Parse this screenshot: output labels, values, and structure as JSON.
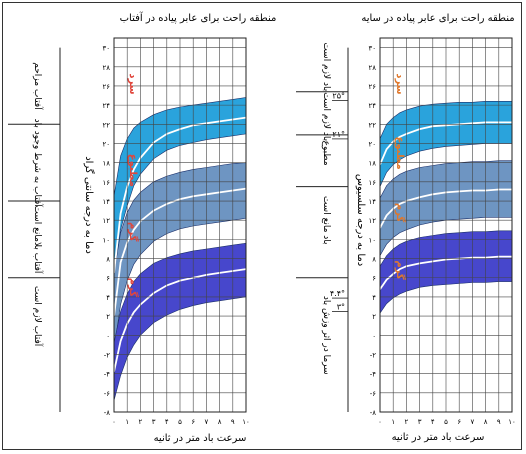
{
  "chart_data": [
    {
      "type": "area",
      "title": "منطقه راحت برای عابر پیاده در آفتاب",
      "xlabel": "سرعت باد متر در ثانیه",
      "ylabel": "دما به درجه سانتی گراد",
      "x_ticks": [
        "۰",
        "۱",
        "۲",
        "۳",
        "۴",
        "۵",
        "۶",
        "۷",
        "۸",
        "۹",
        "۱۰"
      ],
      "y_ticks": [
        {
          "v": 30,
          "t": "۳۰"
        },
        {
          "v": 28,
          "t": "۲۸"
        },
        {
          "v": 26,
          "t": "۲۶"
        },
        {
          "v": 24,
          "t": "۲۴"
        },
        {
          "v": 22,
          "t": "۲۲"
        },
        {
          "v": 20,
          "t": "۲۰"
        },
        {
          "v": 18,
          "t": "۱۸"
        },
        {
          "v": 16,
          "t": "۱۶"
        },
        {
          "v": 14,
          "t": "۱۴"
        },
        {
          "v": 12,
          "t": "۱۲"
        },
        {
          "v": 10,
          "t": "۱۰"
        },
        {
          "v": 8,
          "t": "۸"
        },
        {
          "v": 6,
          "t": "۶"
        },
        {
          "v": 4,
          "t": "۴"
        },
        {
          "v": 2,
          "t": "۲"
        },
        {
          "v": 0,
          "t": "۰"
        },
        {
          "v": -2,
          "t": "-۲"
        },
        {
          "v": -4,
          "t": "-۴"
        },
        {
          "v": -6,
          "t": "-۶"
        },
        {
          "v": -8,
          "t": "-۸"
        }
      ],
      "xlim": [
        0,
        10
      ],
      "ylim": [
        -8,
        31
      ],
      "x": [
        0,
        0.5,
        1,
        1.5,
        2,
        3,
        4,
        5,
        6,
        7,
        8,
        9,
        10
      ],
      "bands": [
        {
          "color": "#2aa3dc",
          "lower": [
            6,
            11,
            13.5,
            15.6,
            16.8,
            18.4,
            19.3,
            19.8,
            20.1,
            20.4,
            20.6,
            20.8,
            21
          ],
          "upper": [
            14.5,
            18.7,
            20.5,
            21.6,
            22.2,
            23,
            23.5,
            23.8,
            24,
            24.2,
            24.4,
            24.6,
            24.8
          ]
        },
        {
          "color": "#6e95c2",
          "lower": [
            -1.5,
            3.2,
            5.7,
            7.4,
            8.4,
            9.8,
            10.6,
            11.1,
            11.4,
            11.6,
            11.8,
            12,
            12.2
          ],
          "upper": [
            6.5,
            10.7,
            12.8,
            14.1,
            14.9,
            16,
            16.6,
            17,
            17.3,
            17.5,
            17.7,
            17.9,
            18
          ]
        },
        {
          "color": "#4747cc",
          "lower": [
            -6.8,
            -4.2,
            -2.3,
            -1,
            0,
            1.3,
            2.1,
            2.7,
            3.1,
            3.4,
            3.6,
            3.8,
            4
          ],
          "upper": [
            -0.8,
            2.5,
            4.3,
            5.6,
            6.4,
            7.5,
            8.1,
            8.5,
            8.8,
            9,
            9.2,
            9.4,
            9.6
          ]
        }
      ],
      "white_lines": [
        [
          6.5,
          12.7,
          15.5,
          17.3,
          18.5,
          20.1,
          21,
          21.5,
          21.9,
          22.1,
          22.3,
          22.5,
          22.7
        ],
        [
          2,
          7.6,
          9.7,
          11,
          11.9,
          13,
          13.7,
          14.2,
          14.5,
          14.7,
          14.9,
          15.1,
          15.3
        ],
        [
          -3.8,
          -0.6,
          1.2,
          2.4,
          3.2,
          4.4,
          5.2,
          5.7,
          6,
          6.3,
          6.5,
          6.7,
          6.9
        ]
      ],
      "marker_text": {
        "color": "#e0463c",
        "groups": [
          {
            "x": 1.2,
            "y": 26.2,
            "text": "سرد"
          },
          {
            "x": 1.2,
            "y": 17.2,
            "text": "مطبوع"
          },
          {
            "x": 1.2,
            "y": 10.8,
            "text": "گرم"
          },
          {
            "x": 1.2,
            "y": 5.0,
            "text": "گرم"
          }
        ]
      },
      "side_labels": [
        {
          "y": 26,
          "text": "آفتاب مزاحم"
        },
        {
          "y": 18,
          "text": "آفتاب به شرط وجود باد"
        },
        {
          "y": 10,
          "text": "آفتاب بلامانع است"
        },
        {
          "y": 2,
          "text": "آفتاب لازم است"
        }
      ]
    },
    {
      "type": "area",
      "title": "منطقه راحت برای عابر پیاده در سایه",
      "xlabel": "سرعت باد متر در ثانیه",
      "ylabel": "دما به درجه سلسیوس",
      "x_ticks": [
        "۰",
        "۱",
        "۲",
        "۳",
        "۴",
        "۵",
        "۶",
        "۷",
        "۸",
        "۹",
        "۱۰"
      ],
      "y_ticks": [
        {
          "v": 30,
          "t": "۳۰"
        },
        {
          "v": 28,
          "t": "۲۸"
        },
        {
          "v": 26,
          "t": "۲۶"
        },
        {
          "v": 24,
          "t": "۲۴"
        },
        {
          "v": 22,
          "t": "۲۲"
        },
        {
          "v": 20,
          "t": "۲۰"
        },
        {
          "v": 18,
          "t": "۱۸"
        },
        {
          "v": 16,
          "t": "۱۶"
        },
        {
          "v": 14,
          "t": "۱۴"
        },
        {
          "v": 12,
          "t": "۱۲"
        },
        {
          "v": 10,
          "t": "۱۰"
        },
        {
          "v": 8,
          "t": "۸"
        },
        {
          "v": 6,
          "t": "۶"
        },
        {
          "v": 4,
          "t": "۴"
        },
        {
          "v": 2,
          "t": "۲"
        },
        {
          "v": 0,
          "t": "۰"
        },
        {
          "v": -2,
          "t": "-۲"
        },
        {
          "v": -4,
          "t": "-۴"
        },
        {
          "v": -6,
          "t": "-۶"
        },
        {
          "v": -8,
          "t": "-۸"
        }
      ],
      "xlim": [
        0,
        10
      ],
      "ylim": [
        -8,
        31
      ],
      "x": [
        0,
        0.5,
        1,
        1.5,
        2,
        3,
        4,
        5,
        6,
        7,
        8,
        9,
        10
      ],
      "bands": [
        {
          "color": "#2aa3dc",
          "lower": [
            15.5,
            17,
            17.8,
            18.3,
            18.7,
            19.2,
            19.5,
            19.7,
            19.8,
            19.9,
            20,
            20,
            20
          ],
          "upper": [
            20.5,
            22,
            22.7,
            23.2,
            23.5,
            23.9,
            24.1,
            24.2,
            24.3,
            24.3,
            24.4,
            24.4,
            24.4
          ]
        },
        {
          "color": "#6e95c2",
          "lower": [
            8.3,
            9.5,
            10.2,
            10.7,
            11,
            11.5,
            11.8,
            12,
            12.1,
            12.2,
            12.3,
            12.3,
            12.3
          ],
          "upper": [
            14.3,
            15.6,
            16.3,
            16.8,
            17.1,
            17.5,
            17.7,
            17.9,
            18,
            18.1,
            18.1,
            18.2,
            18.2
          ]
        },
        {
          "color": "#4747cc",
          "lower": [
            2.3,
            3.3,
            3.9,
            4.3,
            4.6,
            5,
            5.2,
            5.3,
            5.4,
            5.5,
            5.5,
            5.6,
            5.6
          ],
          "upper": [
            7.2,
            8.3,
            9,
            9.5,
            9.8,
            10.2,
            10.4,
            10.6,
            10.7,
            10.8,
            10.8,
            10.9,
            10.9
          ]
        }
      ],
      "white_lines": [
        [
          17.8,
          19.4,
          20.2,
          20.7,
          21,
          21.5,
          21.8,
          21.9,
          22,
          22.1,
          22.2,
          22.2,
          22.2
        ],
        [
          11.2,
          12.5,
          13.2,
          13.7,
          14,
          14.4,
          14.7,
          14.9,
          15,
          15.1,
          15.1,
          15.2,
          15.2
        ],
        [
          4.8,
          5.8,
          6.4,
          6.9,
          7.2,
          7.5,
          7.7,
          7.9,
          8,
          8.1,
          8.1,
          8.2,
          8.2
        ]
      ],
      "marker_text": {
        "color": "#e0782c",
        "groups": [
          {
            "x": 1.3,
            "y": 26.2,
            "text": "سرد"
          },
          {
            "x": 1.3,
            "y": 19.0,
            "text": "مطبوع"
          },
          {
            "x": 1.3,
            "y": 12.8,
            "text": "گرم"
          },
          {
            "x": 1.3,
            "y": 6.8,
            "text": "گرم"
          }
        ]
      },
      "side_labels": [
        {
          "y": 28,
          "text": "باد لازم است"
        },
        {
          "y": 22.8,
          "text": "باد لازم است"
        },
        {
          "y": 19,
          "text": "مطبوع"
        },
        {
          "y": 12,
          "text": "باد مانع است"
        },
        {
          "y": 0,
          "text": "سرما در اثر وزش باد"
        }
      ],
      "threshold_labels": [
        {
          "y": 25,
          "text": "۲۵°"
        },
        {
          "y": 21,
          "text": "۲۱°"
        },
        {
          "y": 4.4,
          "text": "۴.۴°"
        },
        {
          "y": 3,
          "text": "۳°"
        }
      ]
    }
  ]
}
